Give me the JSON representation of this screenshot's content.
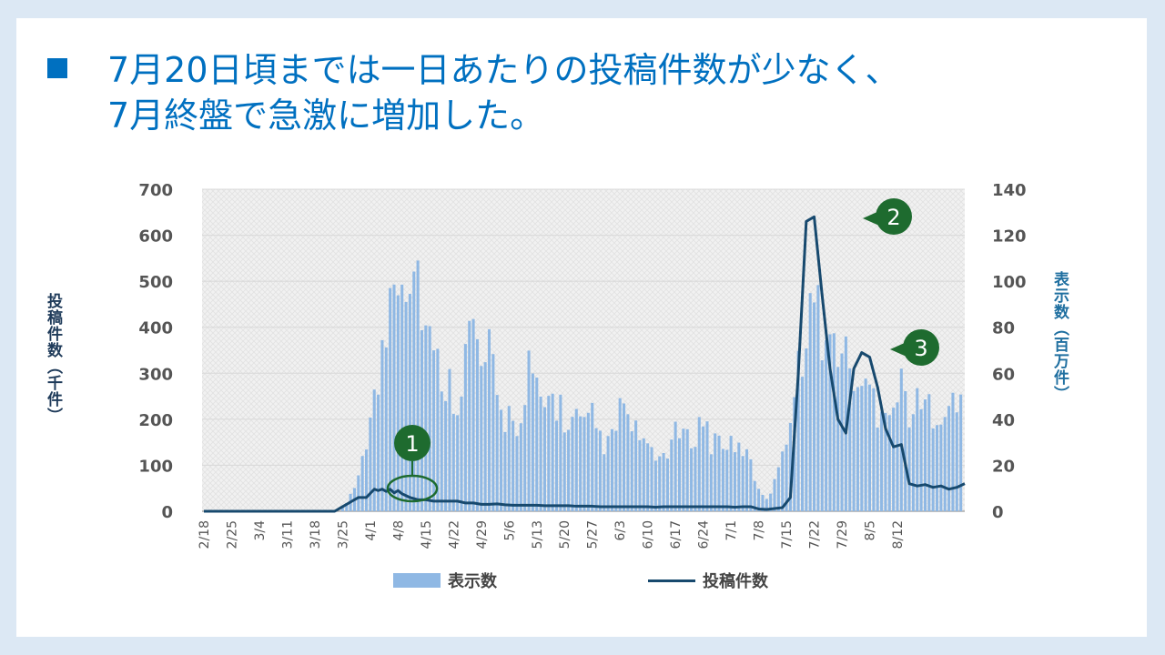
{
  "slide": {
    "title_lines": [
      "7月20日頃までは一日あたりの投稿件数が少なく、",
      "7月終盤で急激に増加した。"
    ]
  },
  "chart_data": {
    "type": "bar+line",
    "x_tick_labels": [
      "2/18",
      "2/25",
      "3/4",
      "3/11",
      "3/18",
      "3/25",
      "4/1",
      "4/8",
      "4/15",
      "4/22",
      "4/29",
      "5/6",
      "5/13",
      "5/20",
      "5/27",
      "6/3",
      "6/10",
      "6/17",
      "6/24",
      "7/1",
      "7/8",
      "7/15",
      "7/22",
      "7/29",
      "8/5",
      "8/12"
    ],
    "y_left": {
      "label": "投稿件数（千件）",
      "ticks": [
        0,
        100,
        200,
        300,
        400,
        500,
        600,
        700
      ],
      "ylim": [
        0,
        700
      ]
    },
    "y_right": {
      "label": "表示数（百万件）",
      "ticks": [
        0,
        20,
        40,
        60,
        80,
        100,
        120,
        140
      ],
      "ylim": [
        0,
        140
      ]
    },
    "series": [
      {
        "name": "表示数",
        "type": "bar",
        "axis": "right",
        "color": "#8fb8e4",
        "description_points": [
          [
            0,
            0
          ],
          [
            34,
            0
          ],
          [
            36,
            3
          ],
          [
            38,
            10
          ],
          [
            40,
            25
          ],
          [
            42,
            40
          ],
          [
            44,
            55
          ],
          [
            46,
            78
          ],
          [
            48,
            115
          ],
          [
            50,
            107
          ],
          [
            52,
            108
          ],
          [
            54,
            105
          ],
          [
            56,
            80
          ],
          [
            58,
            65
          ],
          [
            60,
            60
          ],
          [
            62,
            55
          ],
          [
            64,
            50
          ],
          [
            66,
            70
          ],
          [
            68,
            80
          ],
          [
            70,
            60
          ],
          [
            72,
            70
          ],
          [
            74,
            45
          ],
          [
            76,
            40
          ],
          [
            78,
            45
          ],
          [
            80,
            35
          ],
          [
            82,
            60
          ],
          [
            84,
            50
          ],
          [
            86,
            45
          ],
          [
            88,
            50
          ],
          [
            90,
            45
          ],
          [
            92,
            35
          ],
          [
            94,
            40
          ],
          [
            96,
            35
          ],
          [
            98,
            40
          ],
          [
            100,
            32
          ],
          [
            102,
            28
          ],
          [
            104,
            35
          ],
          [
            106,
            50
          ],
          [
            108,
            32
          ],
          [
            110,
            35
          ],
          [
            112,
            25
          ],
          [
            114,
            22
          ],
          [
            116,
            25
          ],
          [
            118,
            30
          ],
          [
            120,
            35
          ],
          [
            122,
            30
          ],
          [
            124,
            35
          ],
          [
            126,
            40
          ],
          [
            128,
            30
          ],
          [
            130,
            32
          ],
          [
            132,
            30
          ],
          [
            134,
            25
          ],
          [
            136,
            28
          ],
          [
            138,
            20
          ],
          [
            140,
            10
          ],
          [
            142,
            6
          ],
          [
            144,
            12
          ],
          [
            146,
            30
          ],
          [
            148,
            40
          ],
          [
            150,
            60
          ],
          [
            152,
            85
          ],
          [
            154,
            90
          ],
          [
            156,
            80
          ],
          [
            158,
            70
          ],
          [
            160,
            75
          ],
          [
            162,
            65
          ],
          [
            164,
            60
          ],
          [
            166,
            50
          ],
          [
            168,
            55
          ],
          [
            170,
            45
          ],
          [
            172,
            50
          ],
          [
            174,
            45
          ],
          [
            176,
            55
          ],
          [
            178,
            45
          ]
        ]
      },
      {
        "name": "投稿件数",
        "type": "line",
        "axis": "left",
        "color": "#17496e",
        "points": [
          [
            0,
            0
          ],
          [
            33,
            0
          ],
          [
            35,
            10
          ],
          [
            37,
            20
          ],
          [
            39,
            30
          ],
          [
            41,
            30
          ],
          [
            43,
            48
          ],
          [
            44,
            45
          ],
          [
            45,
            48
          ],
          [
            46,
            43
          ],
          [
            47,
            48
          ],
          [
            48,
            40
          ],
          [
            49,
            45
          ],
          [
            50,
            38
          ],
          [
            52,
            30
          ],
          [
            54,
            25
          ],
          [
            56,
            25
          ],
          [
            58,
            22
          ],
          [
            60,
            22
          ],
          [
            62,
            22
          ],
          [
            64,
            22
          ],
          [
            66,
            18
          ],
          [
            68,
            18
          ],
          [
            70,
            15
          ],
          [
            72,
            15
          ],
          [
            74,
            16
          ],
          [
            76,
            14
          ],
          [
            78,
            13
          ],
          [
            80,
            13
          ],
          [
            82,
            13
          ],
          [
            84,
            13
          ],
          [
            86,
            12
          ],
          [
            88,
            12
          ],
          [
            90,
            12
          ],
          [
            92,
            12
          ],
          [
            94,
            11
          ],
          [
            96,
            11
          ],
          [
            98,
            11
          ],
          [
            100,
            10
          ],
          [
            102,
            10
          ],
          [
            104,
            10
          ],
          [
            106,
            10
          ],
          [
            108,
            10
          ],
          [
            110,
            10
          ],
          [
            112,
            10
          ],
          [
            114,
            9
          ],
          [
            116,
            10
          ],
          [
            118,
            10
          ],
          [
            120,
            10
          ],
          [
            122,
            10
          ],
          [
            124,
            10
          ],
          [
            126,
            10
          ],
          [
            128,
            10
          ],
          [
            130,
            10
          ],
          [
            132,
            10
          ],
          [
            134,
            9
          ],
          [
            136,
            10
          ],
          [
            138,
            10
          ],
          [
            140,
            5
          ],
          [
            142,
            4
          ],
          [
            144,
            6
          ],
          [
            146,
            8
          ],
          [
            148,
            30
          ],
          [
            150,
            300
          ],
          [
            152,
            630
          ],
          [
            154,
            640
          ],
          [
            156,
            470
          ],
          [
            158,
            310
          ],
          [
            160,
            200
          ],
          [
            162,
            170
          ],
          [
            164,
            310
          ],
          [
            166,
            345
          ],
          [
            168,
            335
          ],
          [
            170,
            270
          ],
          [
            172,
            180
          ],
          [
            174,
            140
          ],
          [
            176,
            145
          ],
          [
            178,
            60
          ],
          [
            180,
            55
          ],
          [
            182,
            58
          ],
          [
            184,
            52
          ],
          [
            186,
            55
          ],
          [
            188,
            48
          ],
          [
            190,
            52
          ],
          [
            192,
            60
          ]
        ]
      }
    ],
    "annotations": [
      "1",
      "2",
      "3"
    ],
    "legend": {
      "position": "bottom"
    }
  },
  "colors": {
    "title": "#0070c0",
    "bar": "#8fb8e4",
    "line": "#17496e",
    "marker": "#1e6b2f"
  }
}
